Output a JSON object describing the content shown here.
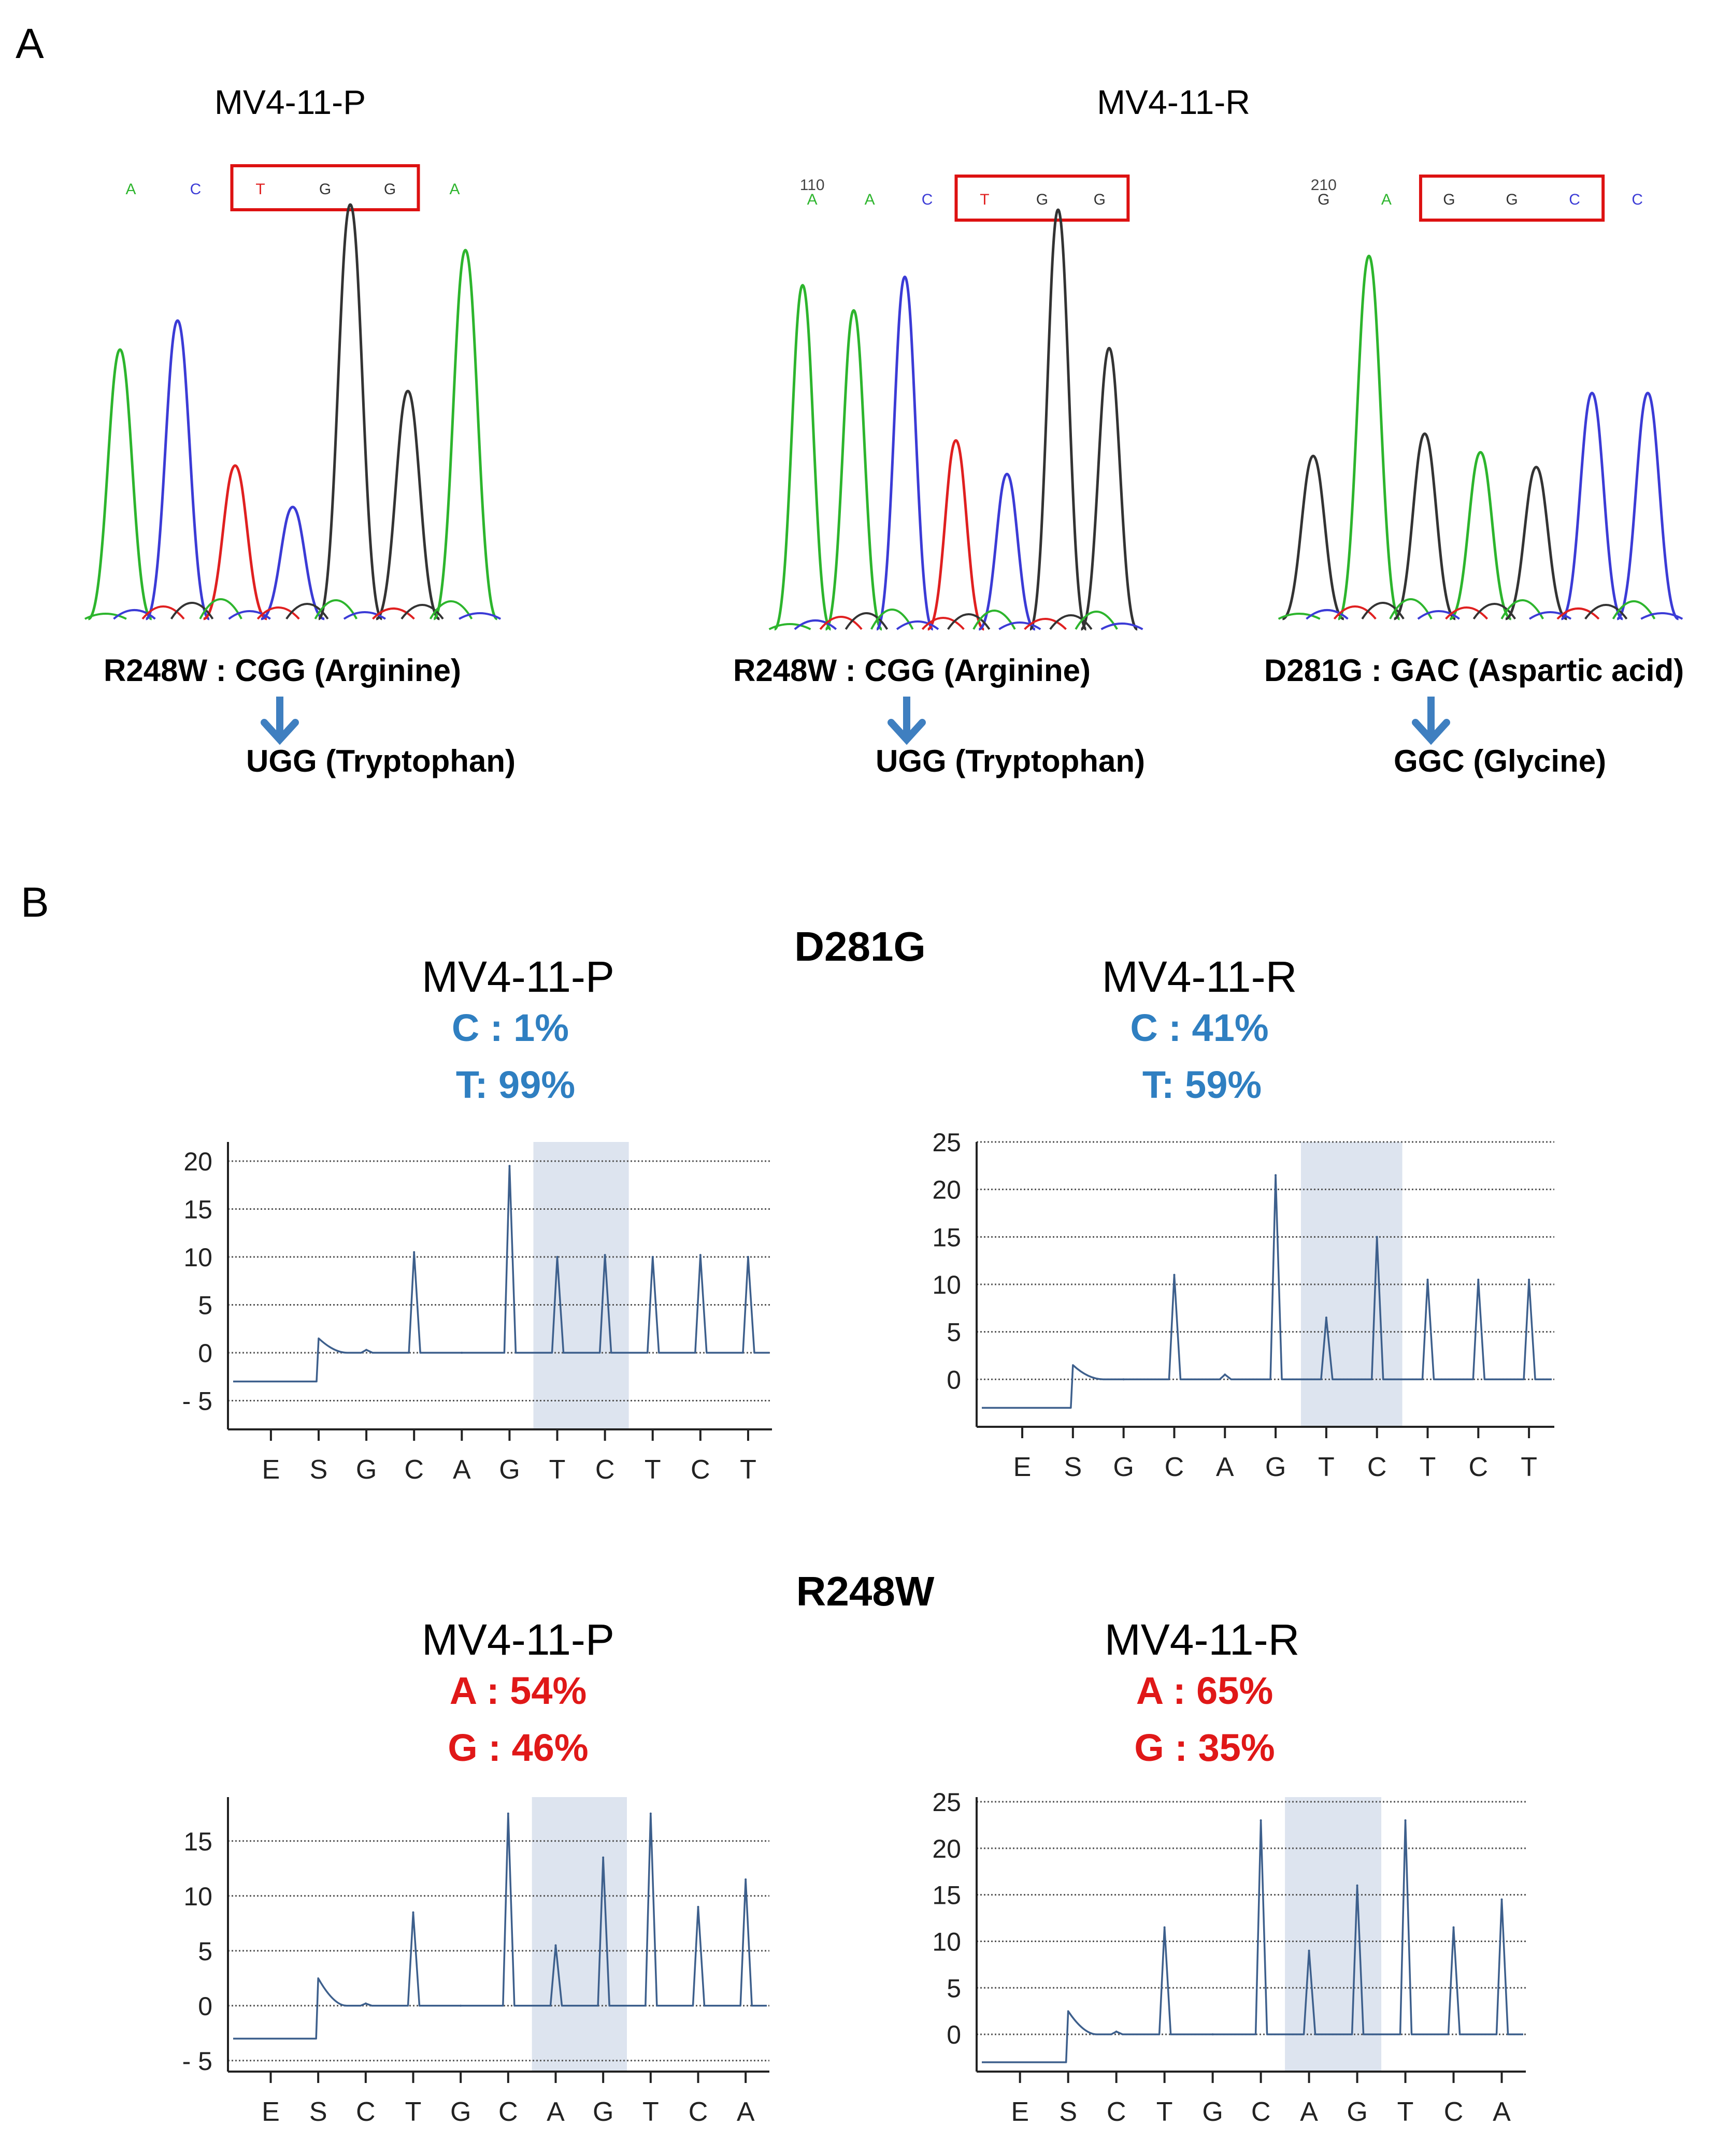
{
  "colors": {
    "A": "#2db52d",
    "C": "#3b3bd6",
    "G": "#333333",
    "T": "#e02020",
    "box": "#dd1111",
    "arrow": "#3f7fc0",
    "blue_text": "#2f7fc1",
    "red_text": "#e01818",
    "pyro_line": "#3d5f8c",
    "highlight": "#dde4ef"
  },
  "panel_a": {
    "label": "A",
    "sample_left": "MV4-11-P",
    "sample_right": "MV4-11-R",
    "traces": [
      {
        "position_label": "",
        "bases": [
          "A",
          "C",
          "T",
          "G",
          "G",
          "A"
        ],
        "boxed": [
          2,
          3,
          4
        ],
        "peaks": [
          {
            "base": "A",
            "height": 0.65
          },
          {
            "base": "C",
            "height": 0.72
          },
          {
            "base": "T",
            "height": 0.37
          },
          {
            "base": "C",
            "height": 0.27
          },
          {
            "base": "G",
            "height": 1.0
          },
          {
            "base": "G",
            "height": 0.55
          },
          {
            "base": "A",
            "height": 0.89
          }
        ],
        "mutation": "R248W : CGG (Arginine)",
        "result": "UGG (Tryptophan)"
      },
      {
        "position_label": "110",
        "bases": [
          "A",
          "A",
          "C",
          "T",
          "G",
          "G"
        ],
        "boxed": [
          3,
          4,
          5
        ],
        "peaks": [
          {
            "base": "A",
            "height": 0.82
          },
          {
            "base": "A",
            "height": 0.76
          },
          {
            "base": "C",
            "height": 0.84
          },
          {
            "base": "T",
            "height": 0.45
          },
          {
            "base": "C",
            "height": 0.37
          },
          {
            "base": "G",
            "height": 1.0
          },
          {
            "base": "G",
            "height": 0.67
          }
        ],
        "mutation": "R248W : CGG (Arginine)",
        "result": "UGG (Tryptophan)"
      },
      {
        "position_label": "210",
        "bases": [
          "G",
          "A",
          "G",
          "G",
          "C",
          "C"
        ],
        "boxed": [
          2,
          3,
          4
        ],
        "peaks": [
          {
            "base": "G",
            "height": 0.44
          },
          {
            "base": "A",
            "height": 0.98
          },
          {
            "base": "G",
            "height": 0.5
          },
          {
            "base": "A",
            "height": 0.45
          },
          {
            "base": "G",
            "height": 0.41
          },
          {
            "base": "C",
            "height": 0.61
          },
          {
            "base": "C",
            "height": 0.61
          }
        ],
        "mutation": "D281G : GAC (Aspartic acid)",
        "result": "GGC (Glycine)"
      }
    ]
  },
  "panel_b": {
    "label": "B",
    "sections": [
      {
        "mutation": "D281G",
        "color": "blue",
        "plots": [
          {
            "sample": "MV4-11-P",
            "line1": "C :  1%",
            "line2": "T:  99%",
            "chart_data": {
              "type": "line",
              "categories": [
                "E",
                "S",
                "G",
                "C",
                "A",
                "G",
                "T",
                "C",
                "T",
                "C",
                "T"
              ],
              "values": [
                -3,
                1.5,
                0.3,
                10.5,
                0,
                19.5,
                10,
                10.2,
                10,
                10.2,
                10
              ],
              "yticks": [
                20,
                15,
                10,
                5,
                0,
                -5
              ],
              "ytick_labels": [
                "20",
                "15",
                "10",
                "5",
                "0",
                "- 5"
              ],
              "ylim": [
                -8,
                22
              ],
              "highlight": [
                6,
                7
              ]
            }
          },
          {
            "sample": "MV4-11-R",
            "line1": "C : 41%",
            "line2": "T:  59%",
            "chart_data": {
              "type": "line",
              "categories": [
                "E",
                "S",
                "G",
                "C",
                "A",
                "G",
                "T",
                "C",
                "T",
                "C",
                "T"
              ],
              "values": [
                -3,
                1.5,
                0,
                11,
                0.5,
                21.5,
                6.5,
                15,
                10.5,
                10.5,
                10.5
              ],
              "yticks": [
                25,
                20,
                15,
                10,
                5,
                0
              ],
              "ytick_labels": [
                "25",
                "20",
                "15",
                "10",
                "5",
                "0"
              ],
              "ylim": [
                -5,
                25
              ],
              "highlight": [
                6,
                7
              ]
            }
          }
        ]
      },
      {
        "mutation": "R248W",
        "color": "red",
        "plots": [
          {
            "sample": "MV4-11-P",
            "line1": "A : 54%",
            "line2": "G : 46%",
            "chart_data": {
              "type": "line",
              "categories": [
                "E",
                "S",
                "C",
                "T",
                "G",
                "C",
                "A",
                "G",
                "T",
                "C",
                "A"
              ],
              "values": [
                -3,
                2.5,
                0.2,
                8.5,
                0,
                17.5,
                5.5,
                13.5,
                17.5,
                9,
                11.5
              ],
              "yticks": [
                15,
                10,
                5,
                0,
                -5
              ],
              "ytick_labels": [
                "15",
                "10",
                "5",
                "0",
                "- 5"
              ],
              "ylim": [
                -6,
                19
              ],
              "highlight": [
                6,
                7
              ]
            }
          },
          {
            "sample": "MV4-11-R",
            "line1": "A : 65%",
            "line2": "G : 35%",
            "chart_data": {
              "type": "line",
              "categories": [
                "E",
                "S",
                "C",
                "T",
                "G",
                "C",
                "A",
                "G",
                "T",
                "C",
                "A"
              ],
              "values": [
                -3,
                2.5,
                0.3,
                11.5,
                0,
                23,
                9,
                16,
                23,
                11.5,
                14.5
              ],
              "yticks": [
                25,
                20,
                15,
                10,
                5,
                0
              ],
              "ytick_labels": [
                "25",
                "20",
                "15",
                "10",
                "5",
                "0"
              ],
              "ylim": [
                -4,
                25.5
              ],
              "highlight": [
                6,
                7
              ]
            }
          }
        ]
      }
    ]
  }
}
